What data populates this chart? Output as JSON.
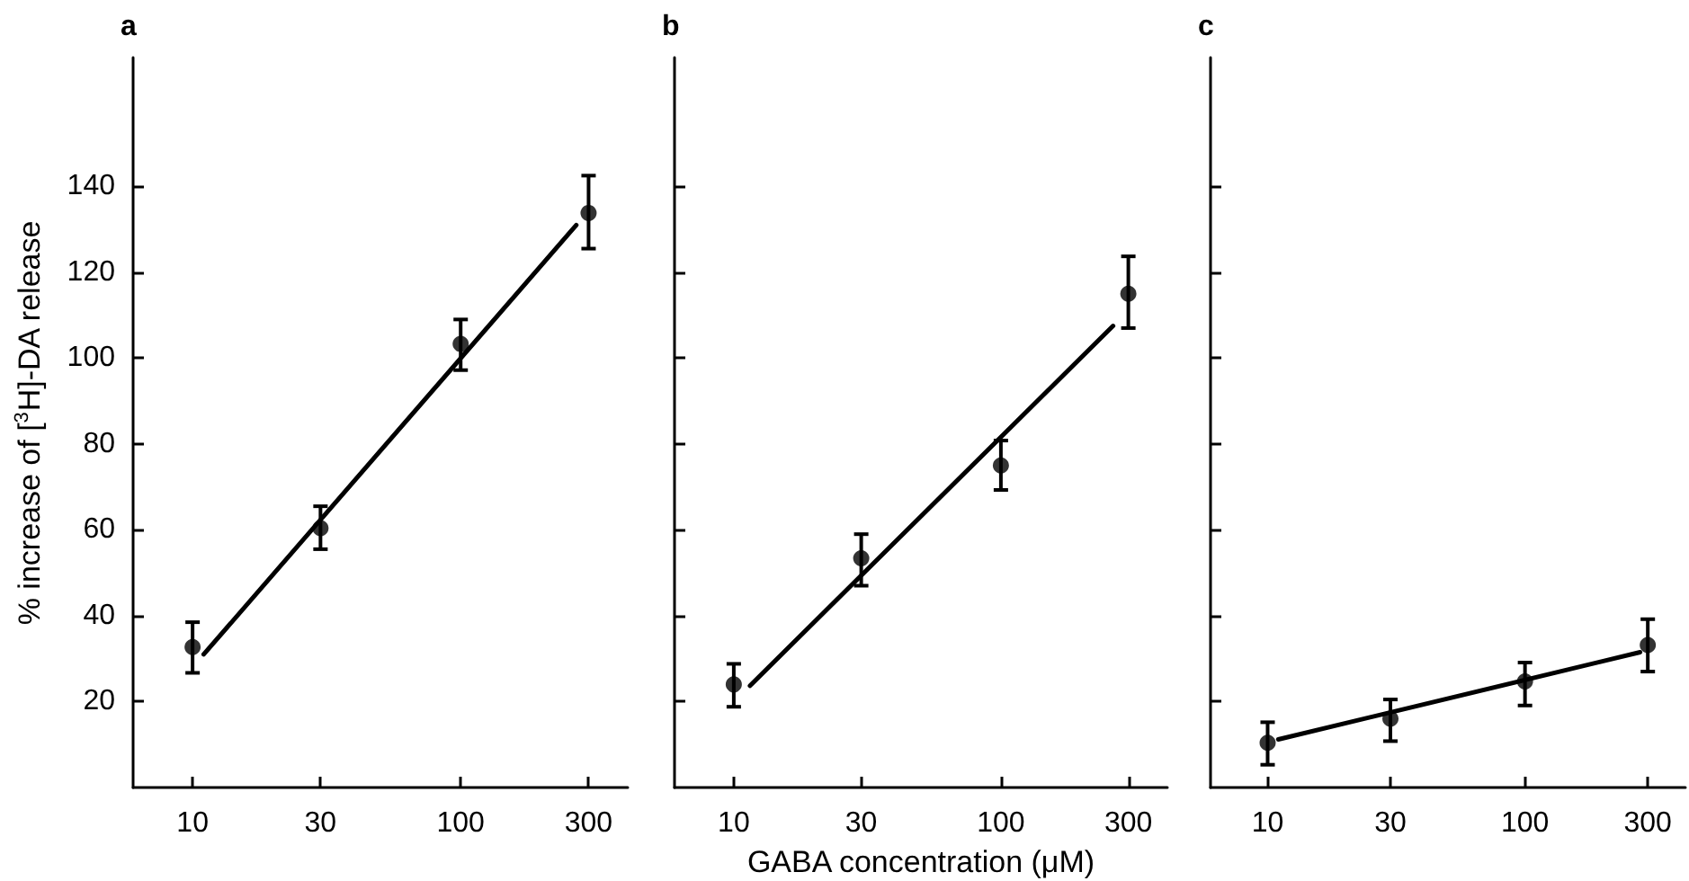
{
  "chart_data": [
    {
      "type": "scatter",
      "title": "a",
      "ylabel": "% increase of [$^{3}$H]-DA release",
      "xlim": [
        6,
        420
      ],
      "ylim": [
        0,
        170
      ],
      "xticks": [
        10,
        30,
        100,
        300
      ],
      "yticks": [
        20,
        40,
        60,
        80,
        100,
        120,
        140
      ],
      "log": "x",
      "series": [
        {
          "marker": "circle",
          "color": "#000000",
          "x": [
            10,
            30,
            100,
            300
          ],
          "values": [
            32.7,
            60.4,
            103.3,
            133.8
          ],
          "errors": [
            [
              26.7,
              38.5
            ],
            [
              55.5,
              65.5
            ],
            [
              97.2,
              109
            ],
            [
              125.5,
              142.5
            ]
          ]
        },
        {
          "type": "line",
          "marker": "none",
          "color": "#000000",
          "line_style": "solid",
          "x": [
            11,
            270
          ],
          "values": [
            31,
            131
          ]
        }
      ]
    },
    {
      "type": "scatter",
      "title": "b",
      "xlabel": "GABA concentration (μM)",
      "xlim": [
        6,
        420
      ],
      "ylim": [
        0,
        170
      ],
      "xticks": [
        10,
        30,
        100,
        300
      ],
      "yticks": [
        20,
        40,
        60,
        80,
        100,
        120,
        140
      ],
      "log": "x",
      "tick_labels": "x",
      "series": [
        {
          "marker": "circle",
          "color": "#000000",
          "x": [
            10,
            30,
            100,
            300
          ],
          "values": [
            24.0,
            53.4,
            75,
            115
          ],
          "errors": [
            [
              18.8,
              28.8
            ],
            [
              47,
              59
            ],
            [
              69.3,
              80.8
            ],
            [
              107,
              123.7
            ]
          ]
        },
        {
          "type": "line",
          "marker": "none",
          "color": "#000000",
          "line_style": "solid",
          "x": [
            11.5,
            263
          ],
          "values": [
            23.7,
            107.5
          ]
        }
      ]
    },
    {
      "type": "scatter",
      "title": "c",
      "xlim": [
        6,
        420
      ],
      "ylim": [
        0,
        170
      ],
      "xticks": [
        10,
        30,
        100,
        300
      ],
      "yticks": [
        20,
        40,
        60,
        80,
        100,
        120,
        140
      ],
      "log": "x",
      "tick_labels": "x",
      "series": [
        {
          "marker": "circle",
          "color": "#000000",
          "x": [
            10,
            30,
            100,
            300
          ],
          "values": [
            10.4,
            16,
            24.7,
            33.2
          ],
          "errors": [
            [
              5.3,
              15.2
            ],
            [
              10.8,
              20.5
            ],
            [
              19.1,
              29.1
            ],
            [
              27,
              39.2
            ]
          ]
        },
        {
          "type": "line",
          "marker": "none",
          "color": "#000000",
          "line_style": "solid",
          "x": [
            11,
            280
          ],
          "values": [
            11.2,
            31.5
          ]
        }
      ]
    }
  ]
}
